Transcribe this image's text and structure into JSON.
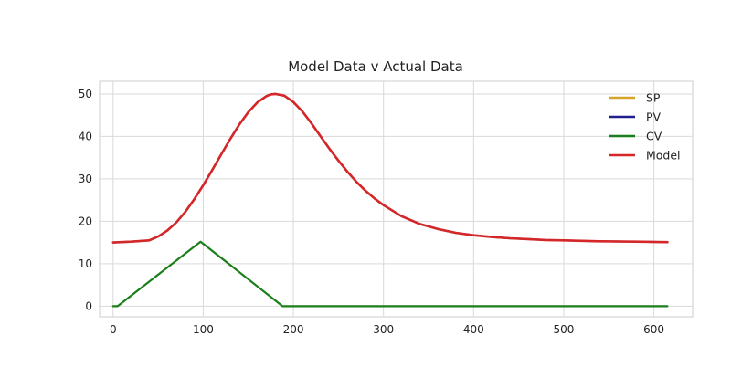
{
  "chart_data": {
    "type": "line",
    "title": "Model Data v Actual Data",
    "xlabel": "",
    "ylabel": "",
    "xlim": [
      -15,
      643
    ],
    "ylim": [
      -2.5,
      53
    ],
    "xticks": [
      0,
      100,
      200,
      300,
      400,
      500,
      600
    ],
    "yticks": [
      0,
      10,
      20,
      30,
      40,
      50
    ],
    "grid": true,
    "legend_position": "top-right",
    "series": [
      {
        "name": "SP",
        "color": "#d4a52a",
        "x": [],
        "y": []
      },
      {
        "name": "PV",
        "color": "#1f1f8f",
        "x": [
          0,
          20,
          40,
          50,
          60,
          70,
          80,
          90,
          100,
          110,
          120,
          130,
          140,
          150,
          160,
          170,
          175,
          180,
          190,
          200,
          210,
          220,
          230,
          240,
          250,
          260,
          270,
          280,
          290,
          300,
          320,
          340,
          360,
          380,
          400,
          420,
          440,
          460,
          480,
          500,
          520,
          540,
          560,
          580,
          600,
          615
        ],
        "y": [
          15,
          15.2,
          15.5,
          16.4,
          17.8,
          19.7,
          22.2,
          25.2,
          28.5,
          32.1,
          35.8,
          39.4,
          42.8,
          45.7,
          48,
          49.5,
          49.9,
          50,
          49.6,
          48.1,
          45.9,
          43.1,
          40.1,
          37.1,
          34.3,
          31.7,
          29.3,
          27.2,
          25.4,
          23.8,
          21.2,
          19.4,
          18.2,
          17.3,
          16.7,
          16.3,
          16,
          15.8,
          15.6,
          15.5,
          15.4,
          15.3,
          15.25,
          15.2,
          15.15,
          15.1
        ]
      },
      {
        "name": "CV",
        "color": "#1a7f1a",
        "x": [
          0,
          5,
          97,
          188,
          615
        ],
        "y": [
          0,
          0,
          15.2,
          0,
          0
        ]
      },
      {
        "name": "Model",
        "color": "#d62728",
        "x": [
          0,
          20,
          40,
          50,
          60,
          70,
          80,
          90,
          100,
          110,
          120,
          130,
          140,
          150,
          160,
          170,
          175,
          180,
          190,
          200,
          210,
          220,
          230,
          240,
          250,
          260,
          270,
          280,
          290,
          300,
          320,
          340,
          360,
          380,
          400,
          420,
          440,
          460,
          480,
          500,
          520,
          540,
          560,
          580,
          600,
          615
        ],
        "y": [
          15,
          15.2,
          15.5,
          16.4,
          17.8,
          19.7,
          22.2,
          25.2,
          28.5,
          32.1,
          35.8,
          39.4,
          42.8,
          45.7,
          48,
          49.5,
          49.9,
          50,
          49.6,
          48.1,
          45.9,
          43.1,
          40.1,
          37.1,
          34.3,
          31.7,
          29.3,
          27.2,
          25.4,
          23.8,
          21.2,
          19.4,
          18.2,
          17.3,
          16.7,
          16.3,
          16,
          15.8,
          15.6,
          15.5,
          15.4,
          15.3,
          15.25,
          15.2,
          15.15,
          15.1
        ]
      }
    ]
  }
}
